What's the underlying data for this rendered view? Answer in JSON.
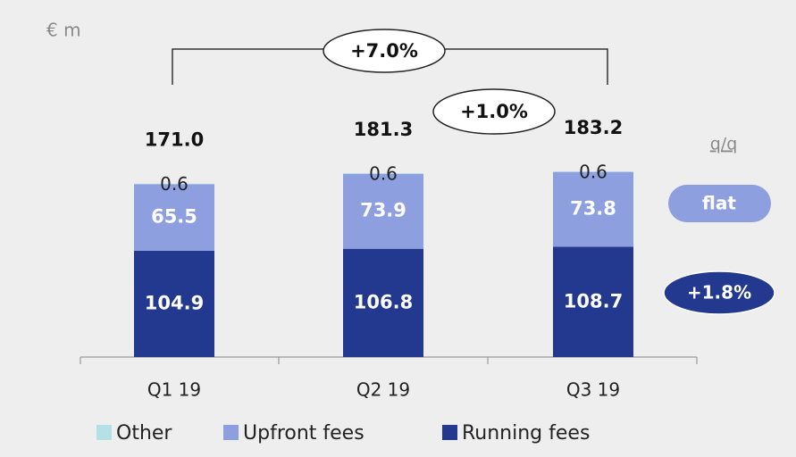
{
  "chart_data": {
    "type": "stacked_bar",
    "unit_label": "€ m",
    "categories": [
      "Q1 19",
      "Q2 19",
      "Q3 19"
    ],
    "series": [
      {
        "name": "Other",
        "color": "#b4e1e6",
        "values": [
          0.6,
          0.6,
          0.6
        ]
      },
      {
        "name": "Upfront fees",
        "color": "#8d9fde",
        "values": [
          65.5,
          73.9,
          73.8
        ]
      },
      {
        "name": "Running fees",
        "color": "#22398f",
        "values": [
          104.9,
          106.8,
          108.7
        ]
      }
    ],
    "totals": [
      171.0,
      181.3,
      183.2
    ],
    "total_labels": [
      "171.0",
      "181.3",
      "183.2"
    ],
    "annotations": {
      "growth_q1_q3": "+7.0%",
      "growth_q2_q3": "+1.0%",
      "qq_header": "q/q",
      "upfront_qq": "flat",
      "running_qq": "+1.8%"
    },
    "legend": "bottom"
  }
}
